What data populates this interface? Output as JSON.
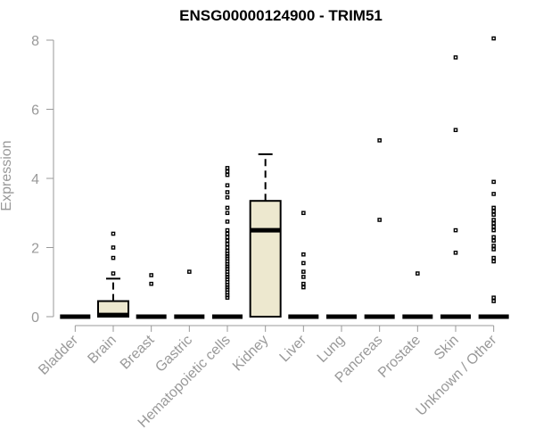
{
  "chart_data": {
    "type": "boxplot",
    "title": "ENSG00000124900 - TRIM51",
    "xlabel": "",
    "ylabel": "Expression",
    "ylim": [
      0,
      8
    ],
    "yticks": [
      0,
      2,
      4,
      6,
      8
    ],
    "box_color": "#ede8cf",
    "categories": [
      "Bladder",
      "Brain",
      "Breast",
      "Gastric",
      "Hematopoietic cells",
      "Kidney",
      "Liver",
      "Lung",
      "Pancreas",
      "Prostate",
      "Skin",
      "Unknown / Other"
    ],
    "boxes": [
      {
        "q1": 0,
        "median": 0,
        "q3": 0,
        "whisker_low": 0,
        "whisker_high": 0,
        "outliers": []
      },
      {
        "q1": 0,
        "median": 0.05,
        "q3": 0.45,
        "whisker_low": 0,
        "whisker_high": 1.1,
        "outliers": [
          1.25,
          1.7,
          2.0,
          2.4
        ]
      },
      {
        "q1": 0,
        "median": 0,
        "q3": 0,
        "whisker_low": 0,
        "whisker_high": 0,
        "outliers": [
          0.95,
          1.2
        ]
      },
      {
        "q1": 0,
        "median": 0,
        "q3": 0,
        "whisker_low": 0,
        "whisker_high": 0,
        "outliers": [
          1.3
        ]
      },
      {
        "q1": 0,
        "median": 0,
        "q3": 0,
        "whisker_low": 0,
        "whisker_high": 0,
        "outliers": [
          0.55,
          0.62,
          0.7,
          0.78,
          0.85,
          0.92,
          1.0,
          1.08,
          1.15,
          1.22,
          1.3,
          1.38,
          1.45,
          1.52,
          1.6,
          1.68,
          1.75,
          1.82,
          1.9,
          2.0,
          2.1,
          2.2,
          2.3,
          2.4,
          2.5,
          2.75,
          3.0,
          3.15,
          3.45,
          3.6,
          3.8,
          4.1,
          4.2,
          4.3
        ]
      },
      {
        "q1": 0,
        "median": 2.5,
        "q3": 3.35,
        "whisker_low": 0,
        "whisker_high": 4.7,
        "outliers": []
      },
      {
        "q1": 0,
        "median": 0,
        "q3": 0,
        "whisker_low": 0,
        "whisker_high": 0,
        "outliers": [
          0.85,
          0.95,
          1.15,
          1.3,
          1.55,
          1.8,
          3.0
        ]
      },
      {
        "q1": 0,
        "median": 0,
        "q3": 0,
        "whisker_low": 0,
        "whisker_high": 0,
        "outliers": []
      },
      {
        "q1": 0,
        "median": 0,
        "q3": 0,
        "whisker_low": 0,
        "whisker_high": 0,
        "outliers": [
          2.8,
          5.1
        ]
      },
      {
        "q1": 0,
        "median": 0,
        "q3": 0,
        "whisker_low": 0,
        "whisker_high": 0,
        "outliers": [
          1.25
        ]
      },
      {
        "q1": 0,
        "median": 0,
        "q3": 0,
        "whisker_low": 0,
        "whisker_high": 0,
        "outliers": [
          1.85,
          2.5,
          5.4,
          7.5
        ]
      },
      {
        "q1": 0,
        "median": 0,
        "q3": 0,
        "whisker_low": 0,
        "whisker_high": 0,
        "outliers": [
          0.45,
          0.55,
          1.6,
          1.7,
          1.95,
          2.05,
          2.2,
          2.3,
          2.5,
          2.6,
          2.7,
          2.8,
          2.95,
          3.05,
          3.15,
          3.55,
          3.9,
          8.05
        ]
      }
    ]
  }
}
